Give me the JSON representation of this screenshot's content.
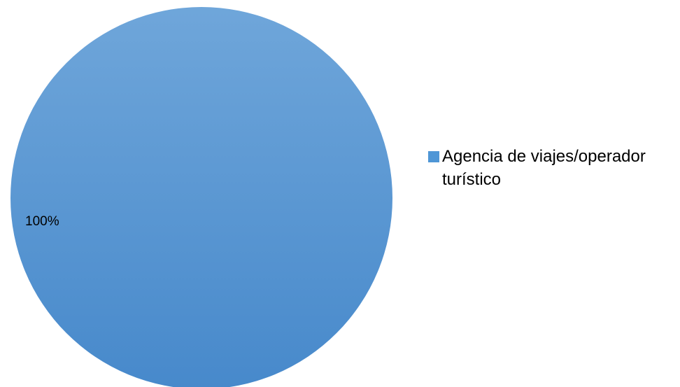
{
  "chart_data": {
    "type": "pie",
    "title": "",
    "categories": [
      "Agencia de viajes/operador turístico"
    ],
    "values": [
      100
    ],
    "data_labels": [
      "100%"
    ],
    "colors": [
      "#4f96d6"
    ],
    "gradient": [
      "#6fa6da",
      "#4789cb"
    ],
    "legend_position": "right"
  }
}
